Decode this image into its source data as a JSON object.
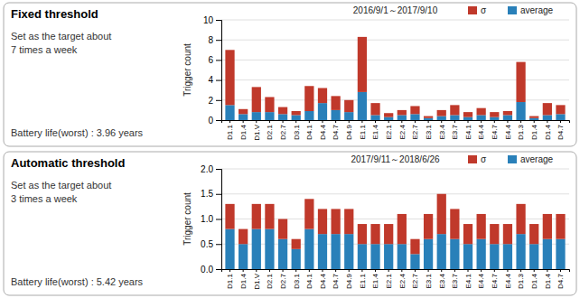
{
  "chart_data": [
    {
      "type": "bar",
      "stacked": true,
      "title": "Fixed threshold",
      "subtitle": "Set as the target about\n7 times a week",
      "annotations": [
        "2016/9/1～2017/9/10",
        "Battery life(worst) : 3.96 years"
      ],
      "y_label": "Trigger count",
      "categories": [
        "D1.1",
        "D1.4",
        "D1.V",
        "D2.1",
        "D2.7",
        "D3.1",
        "D4.1",
        "D4.4",
        "D4.7",
        "D4.9",
        "E1.1",
        "E1.4",
        "E2.1",
        "E2.4",
        "E2.7",
        "E3.1",
        "E3.4",
        "E3.7",
        "E4.1",
        "E4.4",
        "E4.7",
        "E4.4",
        "D1.3",
        "D1.4",
        "D1.4",
        "D4.7"
      ],
      "series": [
        {
          "name": "average",
          "color": "#2980b9",
          "values": [
            1.5,
            0.6,
            0.8,
            0.8,
            0.6,
            0.5,
            0.9,
            1.7,
            1.0,
            0.8,
            2.8,
            0.5,
            0.3,
            0.5,
            0.6,
            0.2,
            0.4,
            0.5,
            0.3,
            0.5,
            0.3,
            0.5,
            1.8,
            0.2,
            0.5,
            0.6
          ]
        },
        {
          "name": "σ",
          "color": "#c0392b",
          "values": [
            5.5,
            0.5,
            2.5,
            1.5,
            0.7,
            0.4,
            2.5,
            1.5,
            1.4,
            1.2,
            5.5,
            1.2,
            0.4,
            0.5,
            0.8,
            0.2,
            0.6,
            1.0,
            0.5,
            0.7,
            0.5,
            0.4,
            4.0,
            0.2,
            1.2,
            0.9
          ]
        }
      ],
      "ylim": [
        0,
        10
      ],
      "yticks": [
        0,
        2,
        4,
        6,
        8,
        10
      ],
      "grid": true,
      "legend": "upper right"
    },
    {
      "type": "bar",
      "stacked": true,
      "title": "Automatic threshold",
      "subtitle": "Set as the target about\n3 times a week",
      "annotations": [
        "2017/9/11～2018/6/26",
        "Battery life(worst) : 5.42 years"
      ],
      "y_label": "Trigger count",
      "categories": [
        "D1.1",
        "D1.4",
        "D1.V",
        "D2.1",
        "D2.7",
        "D3.1",
        "D4.1",
        "D4.4",
        "D4.7",
        "D4.9",
        "E1.1",
        "E1.4",
        "E2.1",
        "E2.4",
        "E2.7",
        "E3.1",
        "E3.4",
        "E3.7",
        "E4.1",
        "E4.4",
        "E4.7",
        "E4.4",
        "D1.3",
        "D1.4",
        "D1.4",
        "D4.7"
      ],
      "series": [
        {
          "name": "average",
          "color": "#2980b9",
          "values": [
            0.8,
            0.5,
            0.8,
            0.8,
            0.6,
            0.4,
            0.8,
            0.7,
            0.7,
            0.7,
            0.5,
            0.5,
            0.5,
            0.5,
            0.3,
            0.6,
            0.7,
            0.6,
            0.5,
            0.6,
            0.5,
            0.5,
            0.7,
            0.5,
            0.6,
            0.6
          ]
        },
        {
          "name": "σ",
          "color": "#c0392b",
          "values": [
            0.5,
            0.3,
            0.5,
            0.5,
            0.4,
            0.2,
            0.6,
            0.5,
            0.5,
            0.5,
            0.4,
            0.4,
            0.4,
            0.6,
            0.3,
            0.5,
            0.8,
            0.6,
            0.4,
            0.5,
            0.4,
            0.4,
            0.6,
            0.4,
            0.5,
            0.5
          ]
        }
      ],
      "ylim": [
        0,
        2
      ],
      "yticks": [
        {
          "value": 0,
          "label": "0.0"
        },
        0.5,
        {
          "value": 1,
          "label": "1.0"
        },
        1.5,
        {
          "value": 2,
          "label": "2.0"
        }
      ],
      "grid": true,
      "legend": "upper right"
    }
  ]
}
